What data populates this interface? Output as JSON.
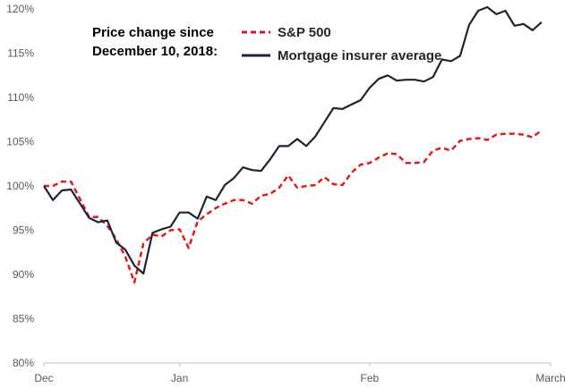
{
  "chart_data": {
    "type": "line",
    "title_lines": [
      "Price change since",
      "December 10, 2018:"
    ],
    "xlabel": "",
    "ylabel": "",
    "ylim": [
      80,
      120
    ],
    "yticks": [
      80,
      85,
      90,
      95,
      100,
      105,
      110,
      115,
      120
    ],
    "ytick_labels": [
      "80%",
      "85%",
      "90%",
      "95%",
      "100%",
      "105%",
      "110%",
      "115%",
      "120%"
    ],
    "xlim": [
      0,
      56
    ],
    "xticks": [
      0,
      15,
      36,
      56
    ],
    "xtick_labels": [
      "Dec",
      "Jan",
      "Feb",
      "March"
    ],
    "grid": false,
    "legend_position": "top",
    "series": [
      {
        "name": "S&P 500",
        "color": "#e31a1c",
        "dash": "dashed",
        "values": [
          100,
          100,
          100.5,
          100.5,
          98.5,
          96.5,
          96.5,
          95.5,
          94,
          92,
          89.1,
          93.5,
          94.5,
          94.3,
          95,
          95.1,
          93,
          96,
          96.8,
          97.5,
          98,
          98.4,
          98.4,
          98,
          98.9,
          99.1,
          99.8,
          101.2,
          99.8,
          100,
          100.1,
          101,
          100.2,
          100.1,
          101.5,
          102.4,
          102.6,
          103.2,
          103.7,
          103.6,
          102.6,
          102.6,
          102.7,
          104,
          104.3,
          104,
          105.1,
          105.3,
          105.4,
          105.2,
          105.8,
          105.9,
          105.9,
          105.8,
          105.5,
          106.3
        ]
      },
      {
        "name": "Mortgage insurer average",
        "color": "#1f2433",
        "dash": "solid",
        "values": [
          100,
          98.4,
          99.5,
          99.6,
          98,
          96.4,
          95.9,
          96.1,
          93.6,
          92.8,
          91,
          90.1,
          94.7,
          95.1,
          95.4,
          97,
          97,
          96.3,
          98.8,
          98.4,
          100.1,
          100.9,
          102.1,
          101.8,
          101.7,
          103,
          104.5,
          104.5,
          105.3,
          104.5,
          105.6,
          107.2,
          108.8,
          108.7,
          109.2,
          109.7,
          111.1,
          112.1,
          112.5,
          111.9,
          112,
          112,
          111.8,
          112.3,
          114.3,
          114.1,
          114.7,
          118.2,
          119.8,
          120.2,
          119.4,
          119.8,
          118.1,
          118.3,
          117.6,
          118.5
        ]
      }
    ]
  }
}
